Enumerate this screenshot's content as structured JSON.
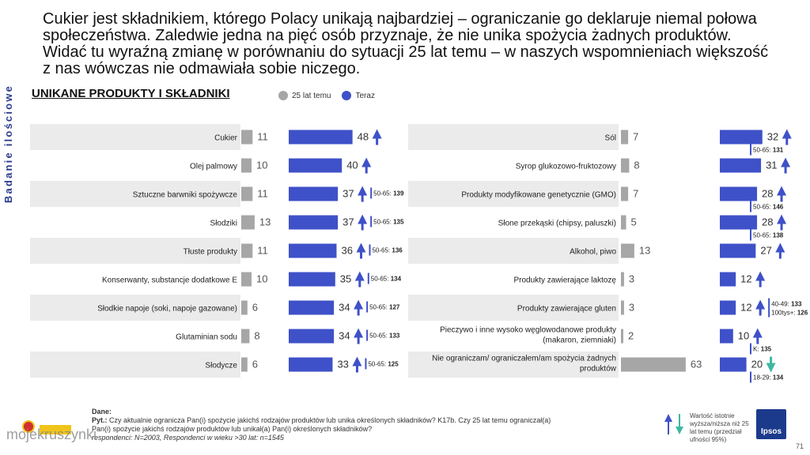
{
  "side_label": "Badanie ilościowe",
  "headline": "Cukier jest składnikiem, którego Polacy unikają najbardziej – ograniczanie go deklaruje niemal połowa społeczeństwa. Zaledwie jedna na pięć osób przyznaje, że nie unika spożycia żadnych produktów. Widać tu wyraźną zmianę w porównaniu do sytuacji 25 lat temu – w naszych wspomnieniach większość z nas wówczas nie odmawiała sobie niczego.",
  "section_title": "UNIKANE PRODUKTY I SKŁADNIKI",
  "legend": {
    "past": "25 lat temu",
    "now": "Teraz"
  },
  "colors": {
    "past": "#a6a6a6",
    "now": "#3f51c8",
    "arrow_up": "#3f51c8",
    "arrow_down": "#3fb8a0",
    "row_band": "#ebebeb"
  },
  "chart_data": {
    "type": "bar",
    "series_names": [
      "25 lat temu",
      "Teraz"
    ],
    "left": [
      {
        "label": "Cukier",
        "past": 11,
        "now": 48,
        "trend": "up",
        "note": ""
      },
      {
        "label": "Olej palmowy",
        "past": 10,
        "now": 40,
        "trend": "up",
        "note": ""
      },
      {
        "label": "Sztuczne barwniki spożywcze",
        "past": 11,
        "now": 37,
        "trend": "up",
        "note": "50-65: 139"
      },
      {
        "label": "Słodziki",
        "past": 13,
        "now": 37,
        "trend": "up",
        "note": "50-65: 135"
      },
      {
        "label": "Tłuste produkty",
        "past": 11,
        "now": 36,
        "trend": "up",
        "note": "50-65: 136"
      },
      {
        "label": "Konserwanty, substancje dodatkowe E",
        "past": 10,
        "now": 35,
        "trend": "up",
        "note": "50-65: 134"
      },
      {
        "label": "Słodkie napoje (soki, napoje gazowane)",
        "past": 6,
        "now": 34,
        "trend": "up",
        "note": "50-65: 127"
      },
      {
        "label": "Glutaminian sodu",
        "past": 8,
        "now": 34,
        "trend": "up",
        "note": "50-65: 133"
      },
      {
        "label": "Słodycze",
        "past": 6,
        "now": 33,
        "trend": "up",
        "note": "50-65: 125"
      }
    ],
    "right": [
      {
        "label": "Sól",
        "past": 7,
        "now": 32,
        "trend": "up",
        "note": "50-65: 131"
      },
      {
        "label": "Syrop glukozowo-fruktozowy",
        "past": 8,
        "now": 31,
        "trend": "up",
        "note": ""
      },
      {
        "label": "Produkty modyfikowane genetycznie (GMO)",
        "past": 7,
        "now": 28,
        "trend": "up",
        "note": "50-65: 146"
      },
      {
        "label": "Słone przekąski (chipsy, paluszki)",
        "past": 5,
        "now": 28,
        "trend": "up",
        "note": "50-65: 138"
      },
      {
        "label": "Alkohol, piwo",
        "past": 13,
        "now": 27,
        "trend": "up",
        "note": ""
      },
      {
        "label": "Produkty zawierające laktozę",
        "past": 3,
        "now": 12,
        "trend": "up",
        "note": ""
      },
      {
        "label": "Produkty zawierające gluten",
        "past": 3,
        "now": 12,
        "trend": "up",
        "note": "40-49: 133|100tys+: 126"
      },
      {
        "label": "Pieczywo i inne wysoko węglowodanowe produkty|(makaron, ziemniaki)",
        "past": 2,
        "now": 10,
        "trend": "up",
        "note": "K: 135"
      },
      {
        "label": "Nie ograniczam/ ograniczałem/am spożycia żadnych|produktów",
        "past": 63,
        "now": 20,
        "trend": "down",
        "note": "18-29: 134"
      }
    ]
  },
  "footer": {
    "dane_label": "Dane:",
    "pyt_label": "Pyt.:",
    "question": "Czy aktualnie ogranicza Pan(i) spożycie jakichś rodzajów produktów lub unika określonych składników? K17b. Czy 25 lat temu ograniczał(a) Pan(i) spożycie jakichś rodzajów produktów lub unikał(a) Pan(i) określonych składników?",
    "base": "respondenci: N=2003, Respondenci w wieku >30 lat: n=1545"
  },
  "significance_note": "Wartość istotnie wyższa/niższa niż 25 lat temu (przedział ufności 95%)",
  "logo_text": "Ipsos",
  "page_number": "71",
  "watermark": "mojekruszynki"
}
